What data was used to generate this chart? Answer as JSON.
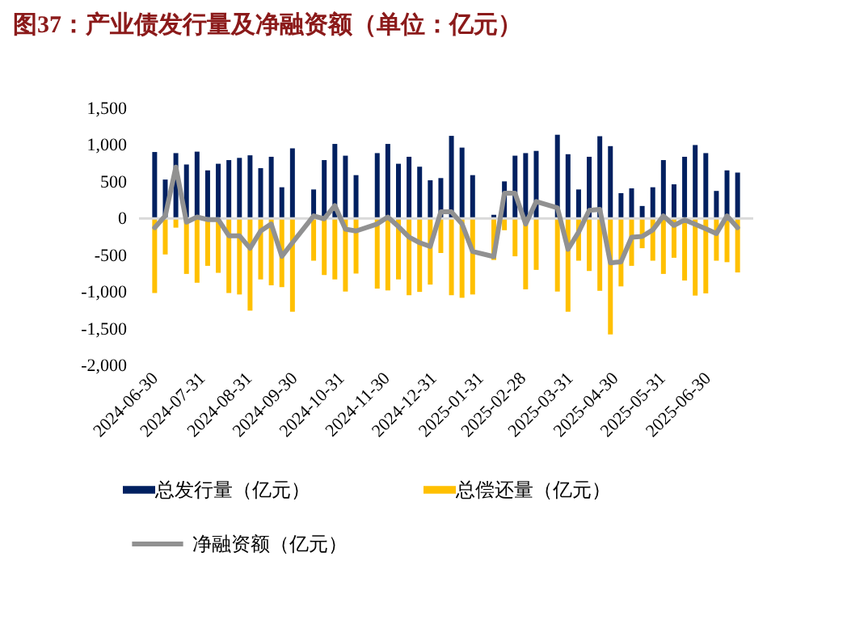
{
  "chart_data": {
    "type": "bar",
    "title": "图37：产业债发行量及净融资额（单位：亿元）",
    "x": [
      "2024-06-30",
      "2024-07-07",
      "2024-07-14",
      "2024-07-21",
      "2024-07-28",
      "2024-08-04",
      "2024-08-11",
      "2024-08-18",
      "2024-08-25",
      "2024-09-01",
      "2024-09-08",
      "2024-09-15",
      "2024-09-22",
      "2024-09-29",
      "2024-10-06",
      "2024-10-13",
      "2024-10-20",
      "2024-10-27",
      "2024-11-03",
      "2024-11-10",
      "2024-11-17",
      "2024-11-24",
      "2024-12-01",
      "2024-12-08",
      "2024-12-15",
      "2024-12-22",
      "2024-12-29",
      "2025-01-05",
      "2025-01-12",
      "2025-01-19",
      "2025-01-26",
      "2025-02-02",
      "2025-02-09",
      "2025-02-16",
      "2025-02-23",
      "2025-03-02",
      "2025-03-09",
      "2025-03-16",
      "2025-03-23",
      "2025-03-30",
      "2025-04-06",
      "2025-04-13",
      "2025-04-20",
      "2025-04-27",
      "2025-05-04",
      "2025-05-11",
      "2025-05-18",
      "2025-05-25",
      "2025-06-01",
      "2025-06-08",
      "2025-06-15",
      "2025-06-22",
      "2025-06-29",
      "2025-07-06",
      "2025-07-13",
      "2025-07-20"
    ],
    "series": [
      {
        "name": "总发行量（亿元）",
        "color": "#002060",
        "values": [
          905,
          530,
          890,
          735,
          910,
          655,
          745,
          795,
          825,
          860,
          685,
          840,
          425,
          955,
          null,
          395,
          795,
          1015,
          855,
          590,
          null,
          890,
          1015,
          745,
          840,
          705,
          520,
          550,
          1125,
          965,
          590,
          null,
          50,
          505,
          855,
          890,
          920,
          null,
          1140,
          875,
          395,
          840,
          1120,
          985,
          345,
          410,
          170,
          425,
          795,
          465,
          840,
          1000,
          890,
          375,
          655,
          625
        ]
      },
      {
        "name": "总偿还量（亿元）",
        "color": "#ffc000",
        "values": [
          -1015,
          -490,
          -125,
          -755,
          -875,
          -645,
          -740,
          -1015,
          -1035,
          -1255,
          -830,
          -910,
          -935,
          -1270,
          null,
          -575,
          -770,
          -830,
          -995,
          -750,
          null,
          -955,
          -980,
          -830,
          -1045,
          -1000,
          -900,
          -470,
          -1045,
          -1080,
          -1035,
          null,
          -565,
          -160,
          -515,
          -965,
          -700,
          null,
          -995,
          -1270,
          -575,
          -715,
          -985,
          -1580,
          -925,
          -645,
          -405,
          -575,
          -755,
          -535,
          -845,
          -1050,
          -1020,
          -575,
          -595,
          -735
        ]
      },
      {
        "name": "净融资额（亿元）",
        "color": "#919191",
        "type": "line",
        "x": [
          "2024-06-30",
          "2024-07-07",
          "2024-07-14",
          "2024-07-21",
          "2024-07-28",
          "2024-08-04",
          "2024-08-11",
          "2024-08-18",
          "2024-08-25",
          "2024-09-01",
          "2024-09-08",
          "2024-09-15",
          "2024-09-22",
          "2024-09-29",
          "2024-10-13",
          "2024-10-20",
          "2024-10-27",
          "2024-11-03",
          "2024-11-10",
          "2024-11-24",
          "2024-12-01",
          "2024-12-08",
          "2024-12-15",
          "2024-12-22",
          "2024-12-29",
          "2025-01-05",
          "2025-01-12",
          "2025-01-19",
          "2025-01-26",
          "2025-02-09",
          "2025-02-16",
          "2025-02-23",
          "2025-03-02",
          "2025-03-09",
          "2025-03-23",
          "2025-03-30",
          "2025-04-06",
          "2025-04-13",
          "2025-04-20",
          "2025-04-27",
          "2025-05-04",
          "2025-05-11",
          "2025-05-18",
          "2025-05-25",
          "2025-06-01",
          "2025-06-08",
          "2025-06-15",
          "2025-06-22",
          "2025-06-29",
          "2025-07-06",
          "2025-07-13",
          "2025-07-20"
        ],
        "values": [
          -125,
          35,
          700,
          -50,
          20,
          -15,
          -15,
          -235,
          -235,
          -405,
          -170,
          -75,
          -515,
          -330,
          35,
          -5,
          175,
          -145,
          -170,
          -75,
          20,
          -110,
          -255,
          -330,
          -380,
          90,
          90,
          -75,
          -450,
          -520,
          345,
          345,
          -75,
          230,
          145,
          -420,
          -185,
          110,
          125,
          -605,
          -590,
          -255,
          -245,
          -155,
          35,
          -95,
          -20,
          -80,
          -140,
          -205,
          35,
          -125
        ]
      }
    ],
    "xlim": [
      "2024-06-25",
      "2025-07-25"
    ],
    "xticks": [
      "2024-06-30",
      "2024-07-31",
      "2024-08-31",
      "2024-09-30",
      "2024-10-31",
      "2024-11-30",
      "2024-12-31",
      "2025-01-31",
      "2025-02-28",
      "2025-03-31",
      "2025-04-30",
      "2025-05-31",
      "2025-06-30"
    ],
    "ylim": [
      -2000,
      1500
    ],
    "yticks": [
      {
        "value": -2000,
        "label": "-2,000"
      },
      {
        "value": -1500,
        "label": "-1,500"
      },
      {
        "value": -1000,
        "label": "-1,000"
      },
      {
        "value": -500,
        "label": "-500"
      },
      0,
      500,
      {
        "value": 1000,
        "label": "1,000"
      },
      {
        "value": 1500,
        "label": "1,500"
      }
    ],
    "ref_lines": [
      {
        "axis": "y",
        "value": 0,
        "color": "#d9d9d9"
      }
    ],
    "grid": false,
    "stacked": true,
    "legend": "bottom"
  }
}
